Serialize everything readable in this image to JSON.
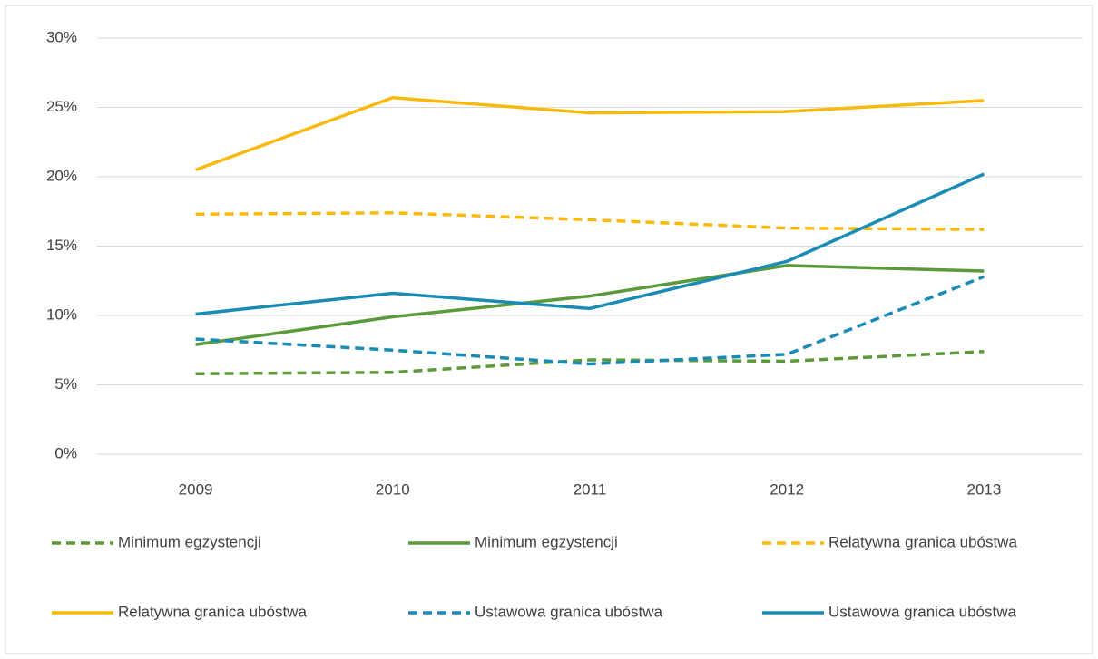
{
  "chart_data": {
    "type": "line",
    "categories": [
      "2009",
      "2010",
      "2011",
      "2012",
      "2013"
    ],
    "ylim": [
      0,
      30
    ],
    "yticks": [
      {
        "value": 0,
        "label": "0%"
      },
      {
        "value": 5,
        "label": "5%"
      },
      {
        "value": 10,
        "label": "10%"
      },
      {
        "value": 15,
        "label": "15%"
      },
      {
        "value": 20,
        "label": "20%"
      },
      {
        "value": 25,
        "label": "25%"
      },
      {
        "value": 30,
        "label": "30%"
      }
    ],
    "grid": true,
    "legend": "bottom",
    "series": [
      {
        "name": "Minimum egzystencji",
        "color": "#5b9a3b",
        "dashed": true,
        "values": [
          5.8,
          5.9,
          6.8,
          6.7,
          7.4
        ]
      },
      {
        "name": "Minimum egzystencji",
        "color": "#5b9a3b",
        "dashed": false,
        "values": [
          7.9,
          9.9,
          11.4,
          13.6,
          13.2
        ]
      },
      {
        "name": "Relatywna granica ubóstwa",
        "color": "#f8b90f",
        "dashed": true,
        "values": [
          17.3,
          17.4,
          16.9,
          16.3,
          16.2
        ]
      },
      {
        "name": "Relatywna granica ubóstwa",
        "color": "#f8b90f",
        "dashed": false,
        "values": [
          20.5,
          25.7,
          24.6,
          24.7,
          25.5
        ]
      },
      {
        "name": "Ustawowa granica ubóstwa",
        "color": "#1a8bb5",
        "dashed": true,
        "values": [
          8.3,
          7.5,
          6.5,
          7.2,
          12.8
        ]
      },
      {
        "name": "Ustawowa granica ubóstwa",
        "color": "#1a8bb5",
        "dashed": false,
        "values": [
          10.1,
          11.6,
          10.5,
          13.9,
          20.2
        ]
      }
    ]
  }
}
